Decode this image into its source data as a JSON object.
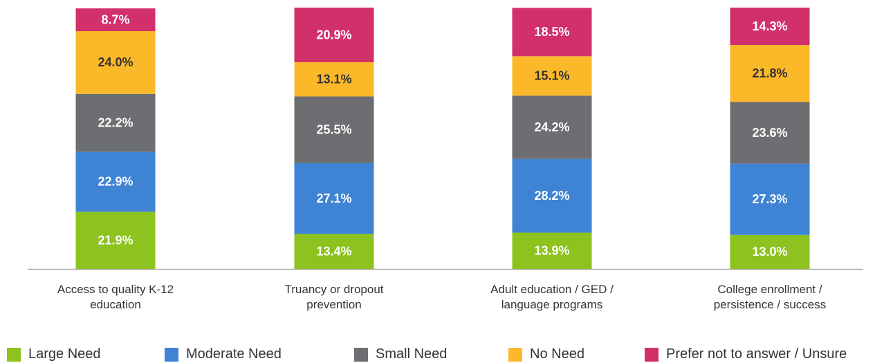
{
  "chart_data": {
    "type": "stacked_bar",
    "categories": [
      "Access to quality K-12 education",
      "Truancy or dropout prevention",
      "Adult education / GED / language programs",
      "College enrollment / persistence / success"
    ],
    "series": [
      {
        "name": "Large Need",
        "color": "#8dc21f",
        "label_color": "#ffffff",
        "values": [
          21.9,
          13.4,
          13.9,
          13.0
        ],
        "value_labels": [
          "21.9%",
          "13.4%",
          "13.9%",
          "13.0%"
        ]
      },
      {
        "name": "Moderate Need",
        "color": "#3f83d4",
        "label_color": "#ffffff",
        "values": [
          22.9,
          27.1,
          28.2,
          27.3
        ],
        "value_labels": [
          "22.9%",
          "27.1%",
          "28.2%",
          "27.3%"
        ]
      },
      {
        "name": "Small Need",
        "color": "#6d6e71",
        "label_color": "#ffffff",
        "values": [
          22.2,
          25.5,
          24.2,
          23.6
        ],
        "value_labels": [
          "22.2%",
          "25.5%",
          "24.2%",
          "23.6%"
        ]
      },
      {
        "name": "No Need",
        "color": "#fbb829",
        "label_color": "#333333",
        "values": [
          24.0,
          13.1,
          15.1,
          21.8
        ],
        "value_labels": [
          "24.0%",
          "13.1%",
          "15.1%",
          "21.8%"
        ]
      },
      {
        "name": "Prefer not to answer / Unsure",
        "color": "#d1306b",
        "label_color": "#ffffff",
        "values": [
          8.7,
          20.9,
          18.5,
          14.3
        ],
        "value_labels": [
          "8.7%",
          "20.9%",
          "18.5%",
          "14.3%"
        ]
      }
    ],
    "ylim": [
      0,
      100
    ]
  }
}
